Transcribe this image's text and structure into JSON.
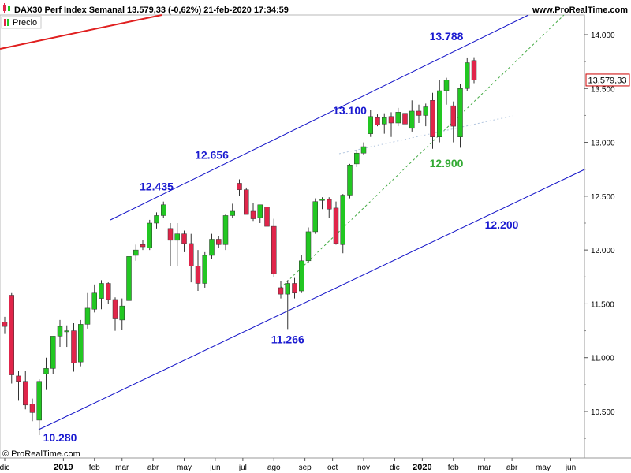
{
  "header": {
    "title": "DAX30 Perf Index Semanal 13.579,33 (-0,62%) 21-feb-2020 17:34:59",
    "site": "www.ProRealTime.com"
  },
  "legend": {
    "label": "Precio"
  },
  "copyright": "© ProRealTime.com",
  "price_tag": "13.579,33",
  "colors": {
    "up": "#22c722",
    "down": "#e0254a",
    "channel": "#1414c8",
    "resistance": "#e02020",
    "dashed_price": "#cc0000",
    "trend_green": "#44aa44",
    "annotation_blue": "#1a1ad0",
    "annotation_green": "#33aa33"
  },
  "chart_data": {
    "type": "candlestick",
    "timeframe": "weekly",
    "ylim": [
      10250,
      14200
    ],
    "y_ticks": [
      10500,
      11000,
      11500,
      12000,
      12500,
      13000,
      13500,
      14000
    ],
    "y_tick_labels": [
      "10.500",
      "11.000",
      "11.500",
      "12.000",
      "12.500",
      "13.000",
      "13.500",
      "14.000"
    ],
    "x_labels": [
      {
        "label": "dic",
        "bold": false
      },
      {
        "label": "2019",
        "bold": true
      },
      {
        "label": "feb",
        "bold": false
      },
      {
        "label": "mar",
        "bold": false
      },
      {
        "label": "abr",
        "bold": false
      },
      {
        "label": "may",
        "bold": false
      },
      {
        "label": "jun",
        "bold": false
      },
      {
        "label": "jul",
        "bold": false
      },
      {
        "label": "ago",
        "bold": false
      },
      {
        "label": "sep",
        "bold": false
      },
      {
        "label": "oct",
        "bold": false
      },
      {
        "label": "nov",
        "bold": false
      },
      {
        "label": "dic",
        "bold": false
      },
      {
        "label": "2020",
        "bold": true
      },
      {
        "label": "feb",
        "bold": false
      },
      {
        "label": "mar",
        "bold": false
      },
      {
        "label": "abr",
        "bold": false
      },
      {
        "label": "may",
        "bold": false
      },
      {
        "label": "jun",
        "bold": false
      }
    ],
    "x_label_weeks": [
      0,
      8.5,
      13,
      17,
      21.5,
      26,
      30.5,
      34.5,
      39,
      43.5,
      47.5,
      52,
      56.5,
      60.5,
      65,
      69.5,
      73.5,
      78,
      82
    ],
    "current_price": 13579.33,
    "candles": [
      {
        "o": 11330,
        "h": 11380,
        "l": 11220,
        "c": 11290
      },
      {
        "o": 11580,
        "h": 11600,
        "l": 10760,
        "c": 10840
      },
      {
        "o": 10830,
        "h": 10880,
        "l": 10600,
        "c": 10780
      },
      {
        "o": 10780,
        "h": 10880,
        "l": 10520,
        "c": 10560
      },
      {
        "o": 10570,
        "h": 10620,
        "l": 10410,
        "c": 10490
      },
      {
        "o": 10420,
        "h": 10800,
        "l": 10280,
        "c": 10780
      },
      {
        "o": 10850,
        "h": 11000,
        "l": 10700,
        "c": 10900
      },
      {
        "o": 10900,
        "h": 11200,
        "l": 10850,
        "c": 11200
      },
      {
        "o": 11200,
        "h": 11350,
        "l": 11100,
        "c": 11290
      },
      {
        "o": 11240,
        "h": 11300,
        "l": 11100,
        "c": 11250
      },
      {
        "o": 11250,
        "h": 11320,
        "l": 10870,
        "c": 10950
      },
      {
        "o": 10960,
        "h": 11350,
        "l": 10920,
        "c": 11310
      },
      {
        "o": 11310,
        "h": 11600,
        "l": 11270,
        "c": 11460
      },
      {
        "o": 11450,
        "h": 11680,
        "l": 11420,
        "c": 11600
      },
      {
        "o": 11550,
        "h": 11720,
        "l": 11450,
        "c": 11690
      },
      {
        "o": 11690,
        "h": 11700,
        "l": 11500,
        "c": 11540
      },
      {
        "o": 11540,
        "h": 11560,
        "l": 11250,
        "c": 11360
      },
      {
        "o": 11350,
        "h": 11550,
        "l": 11260,
        "c": 11480
      },
      {
        "o": 11530,
        "h": 11980,
        "l": 11480,
        "c": 11940
      },
      {
        "o": 11950,
        "h": 12050,
        "l": 11900,
        "c": 12000
      },
      {
        "o": 12050,
        "h": 12090,
        "l": 12000,
        "c": 12030
      },
      {
        "o": 12020,
        "h": 12280,
        "l": 12000,
        "c": 12250
      },
      {
        "o": 12250,
        "h": 12350,
        "l": 12200,
        "c": 12320
      },
      {
        "o": 12320,
        "h": 12450,
        "l": 12300,
        "c": 12420
      },
      {
        "o": 12200,
        "h": 12250,
        "l": 11850,
        "c": 12090
      },
      {
        "o": 12090,
        "h": 12250,
        "l": 11850,
        "c": 12150
      },
      {
        "o": 12150,
        "h": 12180,
        "l": 11980,
        "c": 12060
      },
      {
        "o": 12060,
        "h": 12150,
        "l": 11700,
        "c": 11850
      },
      {
        "o": 11850,
        "h": 12000,
        "l": 11620,
        "c": 11690
      },
      {
        "o": 11690,
        "h": 11980,
        "l": 11650,
        "c": 11950
      },
      {
        "o": 11950,
        "h": 12150,
        "l": 11920,
        "c": 12100
      },
      {
        "o": 12100,
        "h": 12130,
        "l": 12020,
        "c": 12050
      },
      {
        "o": 12050,
        "h": 12330,
        "l": 12000,
        "c": 12320
      },
      {
        "o": 12320,
        "h": 12430,
        "l": 12300,
        "c": 12360
      },
      {
        "o": 12620,
        "h": 12656,
        "l": 12500,
        "c": 12560
      },
      {
        "o": 12560,
        "h": 12580,
        "l": 12350,
        "c": 12330
      },
      {
        "o": 12360,
        "h": 12440,
        "l": 12270,
        "c": 12290
      },
      {
        "o": 12300,
        "h": 12420,
        "l": 12250,
        "c": 12420
      },
      {
        "o": 12400,
        "h": 12500,
        "l": 12200,
        "c": 12220
      },
      {
        "o": 12220,
        "h": 12290,
        "l": 11750,
        "c": 11780
      },
      {
        "o": 11650,
        "h": 11710,
        "l": 11550,
        "c": 11590
      },
      {
        "o": 11590,
        "h": 11720,
        "l": 11266,
        "c": 11690
      },
      {
        "o": 11690,
        "h": 11740,
        "l": 11550,
        "c": 11600
      },
      {
        "o": 11620,
        "h": 11950,
        "l": 11600,
        "c": 11900
      },
      {
        "o": 11900,
        "h": 12210,
        "l": 11880,
        "c": 12170
      },
      {
        "o": 12170,
        "h": 12480,
        "l": 12150,
        "c": 12450
      },
      {
        "o": 12460,
        "h": 12490,
        "l": 12380,
        "c": 12470
      },
      {
        "o": 12470,
        "h": 12490,
        "l": 12300,
        "c": 12380
      },
      {
        "o": 12390,
        "h": 12450,
        "l": 12050,
        "c": 12060
      },
      {
        "o": 12050,
        "h": 12520,
        "l": 11970,
        "c": 12510
      },
      {
        "o": 12510,
        "h": 12800,
        "l": 12480,
        "c": 12790
      },
      {
        "o": 12800,
        "h": 12930,
        "l": 12770,
        "c": 12900
      },
      {
        "o": 12900,
        "h": 13000,
        "l": 12880,
        "c": 12960
      },
      {
        "o": 13080,
        "h": 13300,
        "l": 13050,
        "c": 13240
      },
      {
        "o": 13230,
        "h": 13260,
        "l": 13150,
        "c": 13160
      },
      {
        "o": 13170,
        "h": 13270,
        "l": 13080,
        "c": 13230
      },
      {
        "o": 13240,
        "h": 13280,
        "l": 13050,
        "c": 13180
      },
      {
        "o": 13180,
        "h": 13320,
        "l": 13150,
        "c": 13280
      },
      {
        "o": 13270,
        "h": 13290,
        "l": 12900,
        "c": 13170
      },
      {
        "o": 13130,
        "h": 13390,
        "l": 13100,
        "c": 13290
      },
      {
        "o": 13290,
        "h": 13350,
        "l": 13180,
        "c": 13250
      },
      {
        "o": 13250,
        "h": 13360,
        "l": 13150,
        "c": 13330
      },
      {
        "o": 13390,
        "h": 13460,
        "l": 12940,
        "c": 13050
      },
      {
        "o": 13050,
        "h": 13580,
        "l": 13000,
        "c": 13480
      },
      {
        "o": 13480,
        "h": 13600,
        "l": 13350,
        "c": 13580
      },
      {
        "o": 13340,
        "h": 13380,
        "l": 13000,
        "c": 13150
      },
      {
        "o": 13050,
        "h": 13540,
        "l": 12950,
        "c": 13500
      },
      {
        "o": 13500,
        "h": 13788,
        "l": 13480,
        "c": 13740
      },
      {
        "o": 13760,
        "h": 13790,
        "l": 13550,
        "c": 13579
      }
    ],
    "annotations": [
      {
        "text": "13.788",
        "price": 13788,
        "week": 64,
        "dy": -22,
        "color": "blue"
      },
      {
        "text": "13.100",
        "price": 13100,
        "week": 50,
        "dy": -22,
        "color": "blue"
      },
      {
        "text": "12.656",
        "price": 12656,
        "week": 30,
        "dy": -26,
        "color": "blue"
      },
      {
        "text": "12.435",
        "price": 12435,
        "week": 22,
        "dy": -16,
        "color": "blue"
      },
      {
        "text": "12.900",
        "price": 12900,
        "week": 64,
        "dy": 18,
        "color": "green"
      },
      {
        "text": "12.200",
        "price": 12200,
        "week": 72,
        "dy": 0,
        "color": "blue"
      },
      {
        "text": "11.266",
        "price": 11266,
        "week": 41,
        "dy": 18,
        "color": "blue"
      },
      {
        "text": "10.280",
        "price": 10280,
        "week": 8,
        "dy": 8,
        "color": "blue"
      }
    ]
  }
}
